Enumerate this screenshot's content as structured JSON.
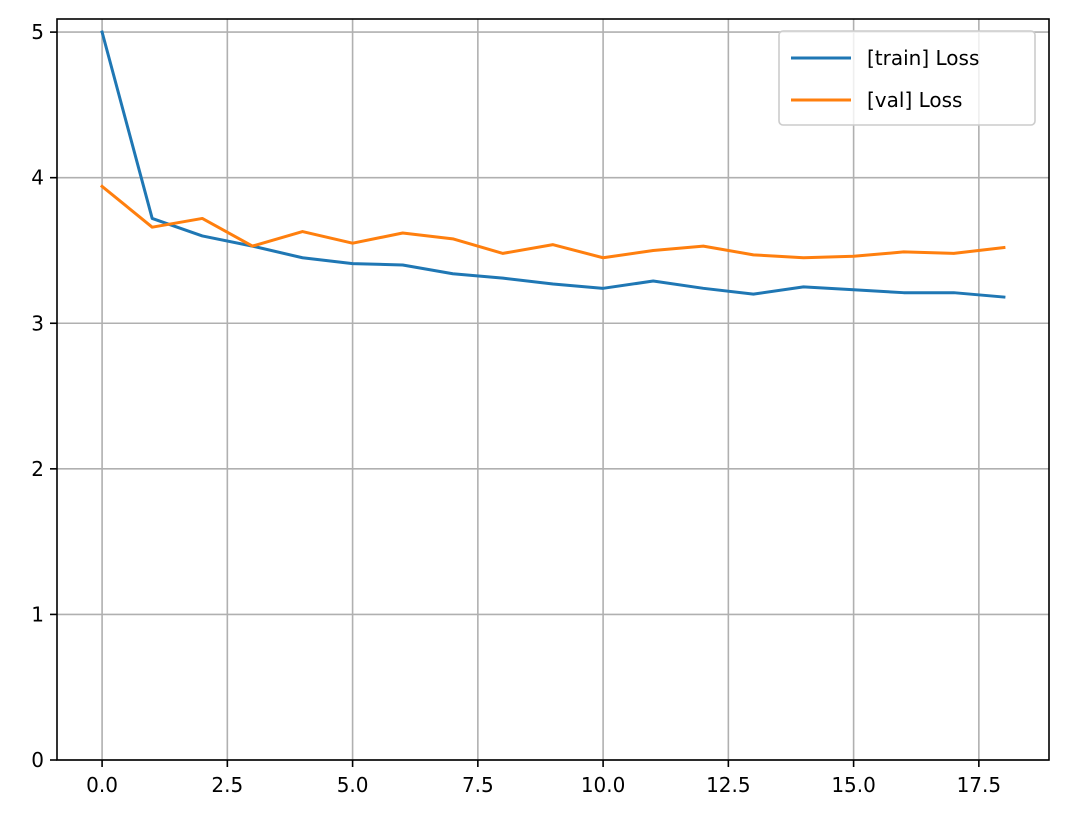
{
  "chart_data": {
    "type": "line",
    "title": "",
    "xlabel": "",
    "ylabel": "",
    "xlim": [
      -0.9,
      18.9
    ],
    "ylim": [
      0,
      5.09
    ],
    "grid": true,
    "legend_position": "top-right",
    "x_ticks": [
      0.0,
      2.5,
      5.0,
      7.5,
      10.0,
      12.5,
      15.0,
      17.5
    ],
    "x_tick_labels": [
      "0.0",
      "2.5",
      "5.0",
      "7.5",
      "10.0",
      "12.5",
      "15.0",
      "17.5"
    ],
    "y_ticks": [
      0,
      1,
      2,
      3,
      4,
      5
    ],
    "y_tick_labels": [
      "0",
      "1",
      "2",
      "3",
      "4",
      "5"
    ],
    "x": [
      0,
      1,
      2,
      3,
      4,
      5,
      6,
      7,
      8,
      9,
      10,
      11,
      12,
      13,
      14,
      15,
      16,
      17,
      18
    ],
    "series": [
      {
        "name": "[train] Loss",
        "color": "#1f77b4",
        "values": [
          5.0,
          3.72,
          3.6,
          3.53,
          3.45,
          3.41,
          3.4,
          3.34,
          3.31,
          3.27,
          3.24,
          3.29,
          3.24,
          3.2,
          3.25,
          3.23,
          3.21,
          3.21,
          3.18
        ]
      },
      {
        "name": "[val] Loss",
        "color": "#ff7f0e",
        "values": [
          3.94,
          3.66,
          3.72,
          3.53,
          3.63,
          3.55,
          3.62,
          3.58,
          3.48,
          3.54,
          3.45,
          3.5,
          3.53,
          3.47,
          3.45,
          3.46,
          3.49,
          3.48,
          3.52
        ]
      }
    ]
  }
}
